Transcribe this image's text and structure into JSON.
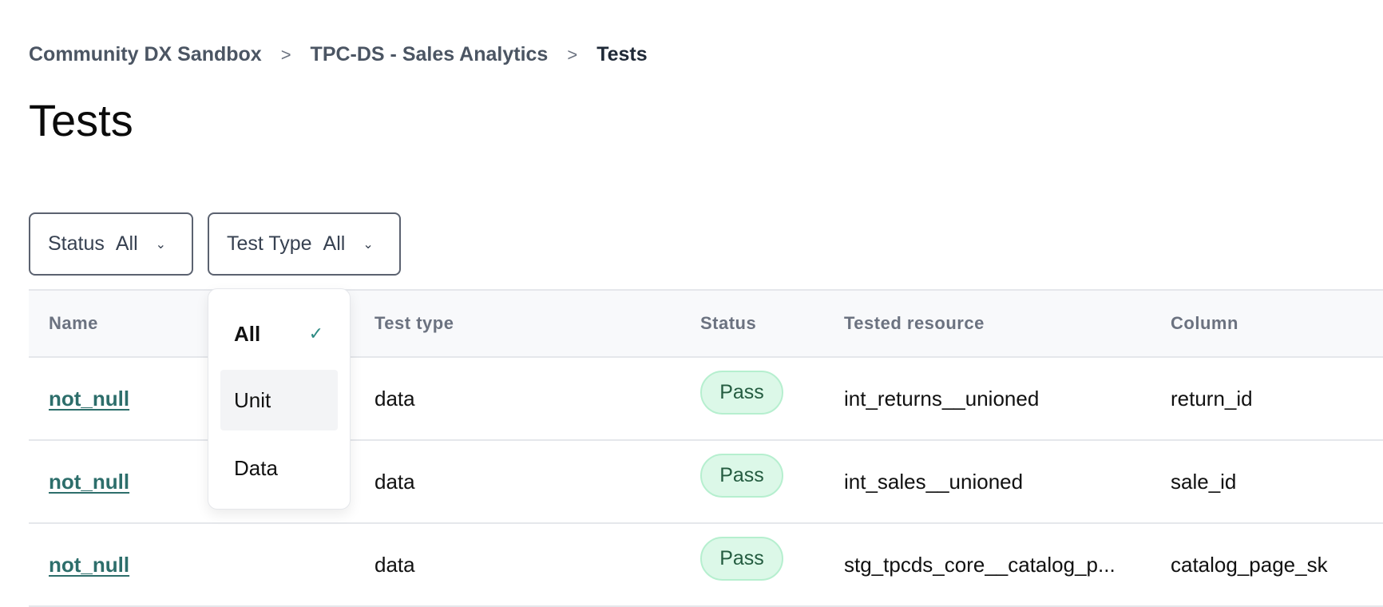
{
  "breadcrumb": [
    "Community DX Sandbox",
    "TPC-DS - Sales Analytics",
    "Tests"
  ],
  "breadcrumb_separator": ">",
  "title": "Tests",
  "filters": {
    "status": {
      "label": "Status",
      "value": "All"
    },
    "test_type": {
      "label": "Test Type",
      "value": "All"
    }
  },
  "dropdown": {
    "options": [
      "All",
      "Unit",
      "Data"
    ],
    "selected": "All",
    "hovered": "Unit",
    "check_icon": "✓"
  },
  "table": {
    "headers": [
      "Name",
      "Test type",
      "Status",
      "Tested resource",
      "Column"
    ],
    "rows": [
      {
        "name": "not_null",
        "type": "data",
        "status": "Pass",
        "resource": "int_returns__unioned",
        "column": "return_id"
      },
      {
        "name": "not_null",
        "type": "data",
        "status": "Pass",
        "resource": "int_sales__unioned",
        "column": "sale_id"
      },
      {
        "name": "not_null",
        "type": "data",
        "status": "Pass",
        "resource": "stg_tpcds_core__catalog_p...",
        "column": "catalog_page_sk"
      }
    ]
  },
  "colors": {
    "link": "#2d6e6b",
    "pass_bg": "#dcf8e8",
    "pass_text": "#245c40",
    "check": "#2d8a83"
  }
}
